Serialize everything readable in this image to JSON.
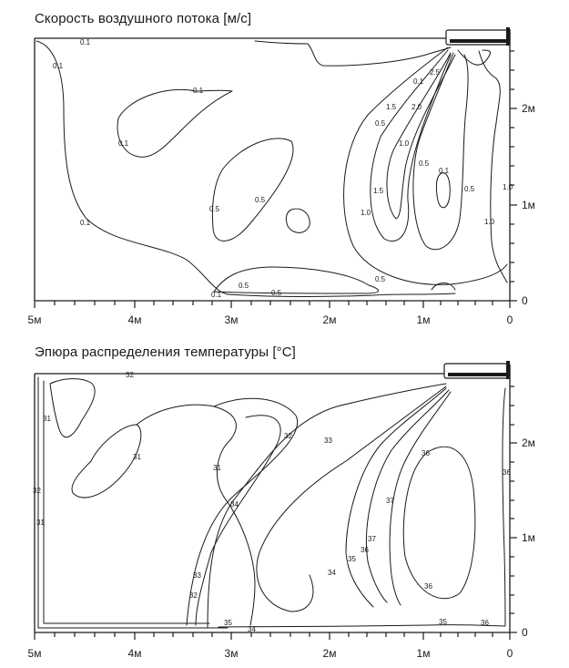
{
  "velocity_panel": {
    "title": "Скорость воздушного потока [м/с]",
    "x_ticks": [
      "5м",
      "4м",
      "3м",
      "2м",
      "1м",
      "0"
    ],
    "y_ticks": [
      "2м",
      "1м",
      "0"
    ],
    "contour_labels": [
      "0.1",
      "0.1",
      "0.1",
      "0.1",
      "0.1",
      "0.1",
      "0.5",
      "0.5",
      "0.5",
      "0.5",
      "0.5",
      "0.5",
      "1.0",
      "1.0",
      "1.0",
      "1.5",
      "1.5",
      "2.0",
      "2.5",
      "0.1",
      "0.1",
      "0.5",
      "0.5",
      "1.0"
    ]
  },
  "temperature_panel": {
    "title": "Эпюра распределения температуры [°C]",
    "x_ticks": [
      "5м",
      "4м",
      "3м",
      "2м",
      "1м",
      "0"
    ],
    "y_ticks": [
      "2м",
      "1м",
      "0"
    ],
    "contour_labels": [
      "32",
      "31",
      "31",
      "31",
      "32",
      "31",
      "33",
      "32",
      "32",
      "33",
      "34",
      "34",
      "35",
      "36",
      "37",
      "36",
      "36",
      "35",
      "35",
      "34",
      "36",
      "36",
      "37"
    ]
  },
  "colors": {
    "line": "#1a1a1a",
    "background": "#ffffff"
  },
  "icons": {
    "ac_unit": "wall-mounted-ac-unit-icon"
  }
}
